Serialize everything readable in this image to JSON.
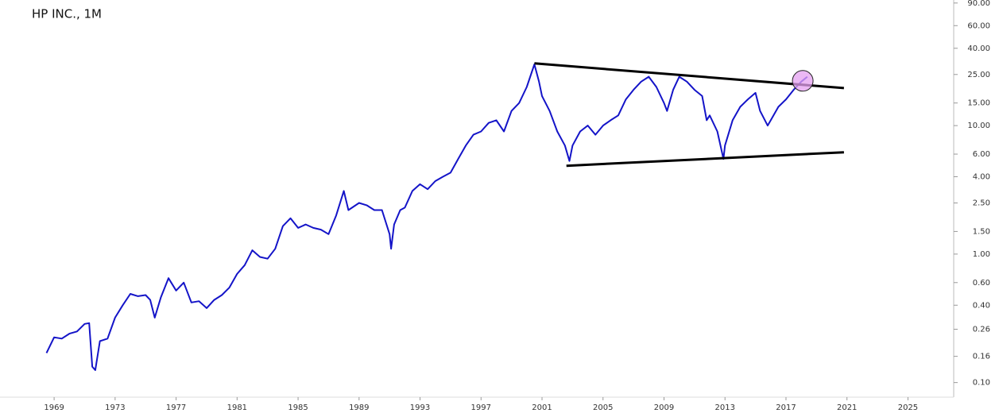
{
  "chart_data": {
    "type": "line",
    "title": "HP INC., 1M",
    "log_scale": true,
    "xlim": [
      1965.45,
      2028.0
    ],
    "xticks": [
      1969,
      1973,
      1977,
      1981,
      1985,
      1989,
      1993,
      1997,
      2001,
      2005,
      2009,
      2013,
      2017,
      2021,
      2025
    ],
    "ylim": [
      0.077,
      95
    ],
    "yticks": [
      {
        "value": 90,
        "label": "90.00"
      },
      {
        "value": 60,
        "label": "60.00"
      },
      {
        "value": 40,
        "label": "40.00"
      },
      {
        "value": 25,
        "label": "25.00"
      },
      {
        "value": 15,
        "label": "15.00"
      },
      {
        "value": 10,
        "label": "10.00"
      },
      {
        "value": 6,
        "label": "6.00"
      },
      {
        "value": 4,
        "label": "4.00"
      },
      {
        "value": 2.5,
        "label": "2.50"
      },
      {
        "value": 1.5,
        "label": "1.50"
      },
      {
        "value": 1,
        "label": "1.00"
      },
      {
        "value": 0.6,
        "label": "0.60"
      },
      {
        "value": 0.4,
        "label": "0.40"
      },
      {
        "value": 0.26,
        "label": "0.26"
      },
      {
        "value": 0.16,
        "label": "0.16"
      },
      {
        "value": 0.1,
        "label": "0.10"
      }
    ],
    "series": [
      {
        "color": "#1414c8",
        "x": [
          1968.5,
          1969,
          1969.5,
          1970,
          1970.5,
          1971,
          1971.3,
          1971.5,
          1971.7,
          1972,
          1972.5,
          1973,
          1973.5,
          1974,
          1974.5,
          1975,
          1975.3,
          1975.6,
          1976,
          1976.5,
          1977,
          1977.5,
          1978,
          1978.5,
          1979,
          1979.5,
          1980,
          1980.5,
          1981,
          1981.5,
          1982,
          1982.5,
          1983,
          1983.5,
          1984,
          1984.5,
          1985,
          1985.5,
          1986,
          1986.5,
          1987,
          1987.5,
          1988,
          1988.3,
          1989,
          1989.5,
          1990,
          1990.5,
          1991,
          1991.1,
          1991.3,
          1991.7,
          1992,
          1992.5,
          1993,
          1993.5,
          1994,
          1994.5,
          1995,
          1995.5,
          1996,
          1996.5,
          1997,
          1997.5,
          1998,
          1998.5,
          1999,
          1999.5,
          2000,
          2000.5,
          2000.8,
          2001,
          2001.5,
          2002,
          2002.5,
          2002.8,
          2003,
          2003.5,
          2004,
          2004.5,
          2005,
          2005.5,
          2006,
          2006.5,
          2007,
          2007.5,
          2008,
          2008.5,
          2009,
          2009.2,
          2009.6,
          2010,
          2010.5,
          2011,
          2011.5,
          2011.8,
          2012,
          2012.5,
          2012.9,
          2013,
          2013.5,
          2014,
          2014.5,
          2015,
          2015.3,
          2015.8,
          2016,
          2016.5,
          2017,
          2017.5,
          2018,
          2018.4
        ],
        "values": [
          0.17,
          0.225,
          0.22,
          0.24,
          0.25,
          0.286,
          0.29,
          0.133,
          0.125,
          0.21,
          0.22,
          0.32,
          0.4,
          0.49,
          0.47,
          0.48,
          0.44,
          0.32,
          0.46,
          0.65,
          0.52,
          0.6,
          0.42,
          0.43,
          0.38,
          0.44,
          0.48,
          0.55,
          0.7,
          0.82,
          1.07,
          0.95,
          0.92,
          1.1,
          1.65,
          1.9,
          1.6,
          1.7,
          1.6,
          1.55,
          1.43,
          2.0,
          3.1,
          2.2,
          2.5,
          2.4,
          2.2,
          2.2,
          1.43,
          1.1,
          1.7,
          2.2,
          2.3,
          3.1,
          3.5,
          3.2,
          3.7,
          4.0,
          4.3,
          5.5,
          7.0,
          8.5,
          9.0,
          10.5,
          11.0,
          9.0,
          13,
          15,
          20,
          30,
          22,
          17,
          13,
          9,
          7,
          5.3,
          7,
          9,
          10,
          8.5,
          10,
          11,
          12,
          16,
          19,
          22,
          24,
          20,
          15,
          13,
          19,
          24,
          22,
          19,
          17,
          11,
          12,
          9,
          5.5,
          7,
          11,
          14,
          16,
          18,
          13,
          10,
          11,
          14,
          16,
          19,
          22,
          24
        ]
      }
    ],
    "trendlines": [
      {
        "x": [
          2000.5,
          2020.8
        ],
        "values": [
          30.5,
          19.6
        ]
      },
      {
        "x": [
          2002.6,
          2020.8
        ],
        "values": [
          4.87,
          6.2
        ]
      }
    ],
    "highlight": {
      "x": 2018.1,
      "y": 22.3
    }
  }
}
